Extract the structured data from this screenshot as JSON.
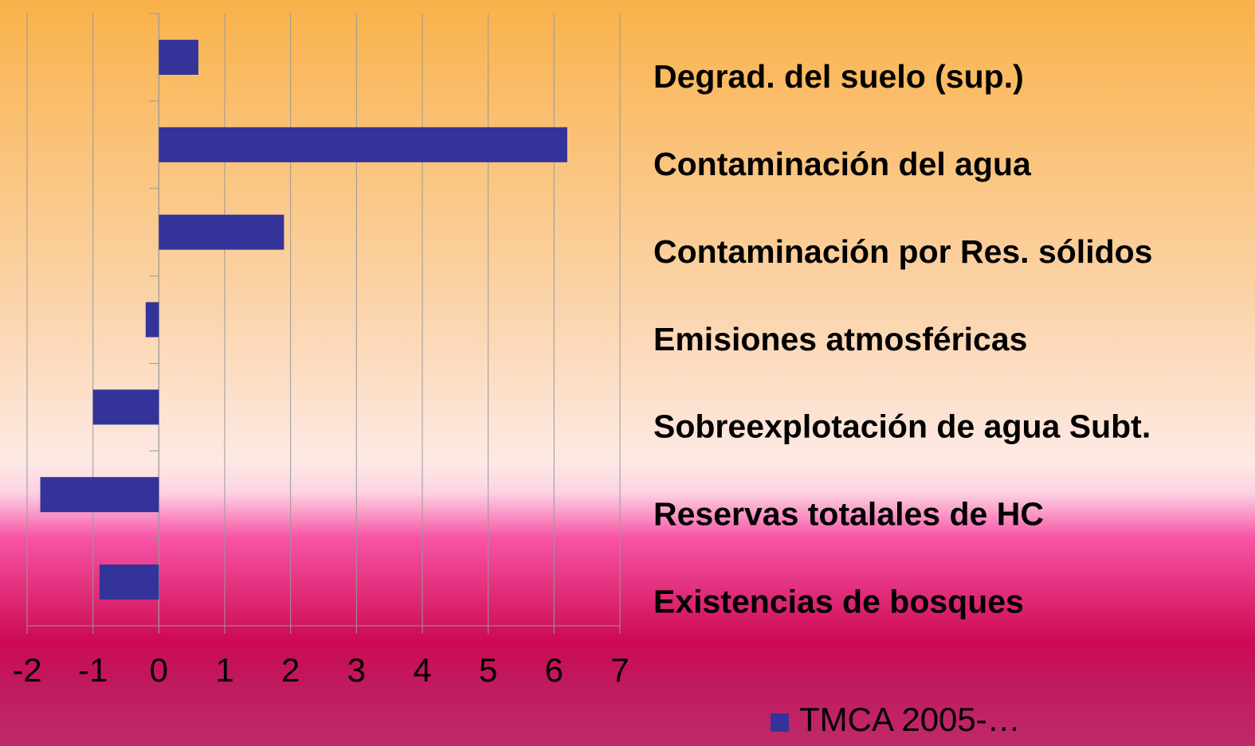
{
  "chart_data": {
    "type": "hbar",
    "categories": [
      "Degrad. del suelo (sup.)",
      "Contaminación del agua",
      "Contaminación por Res. sólidos",
      "Emisiones atmosféricas",
      "Sobreexplotación de agua Subt.",
      "Reservas totalales de HC",
      "Existencias de bosques"
    ],
    "series": [
      {
        "name": "TMCA 2005-…",
        "color": "#333399",
        "values": [
          0.6,
          6.2,
          1.9,
          -0.2,
          -1.0,
          -1.8,
          -0.9
        ]
      }
    ],
    "xlim": [
      -2,
      7
    ],
    "xticks": [
      -2,
      -1,
      0,
      1,
      2,
      3,
      4,
      5,
      6,
      7
    ],
    "grid": true,
    "legend": "bottom"
  }
}
